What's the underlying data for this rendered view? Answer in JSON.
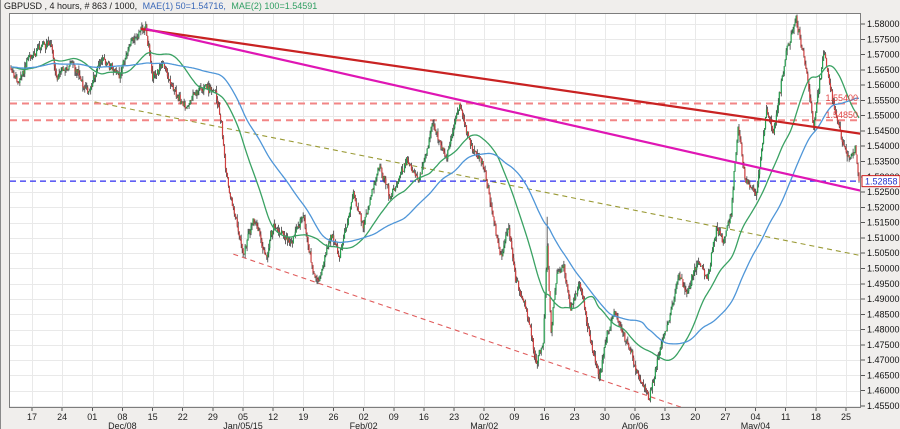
{
  "header": {
    "symbol_period": "GBPUSD , 4 hours, # 863 / 1000,",
    "mae1": "MAE(1) 50=1.54716,",
    "mae2": "MAE(2) 100=1.54591",
    "mae1_color": "#3a68b8",
    "mae2_color": "#2f9e62"
  },
  "current_price": {
    "value": "1.52858",
    "price": 1.52858,
    "line_color": "#2d2df0",
    "box_border_color": "#d02020",
    "text_color": "#2233cc"
  },
  "chart_data": {
    "type": "candlestick",
    "symbol": "GBPUSD",
    "timeframe": "4 hours",
    "bars": 863,
    "ylim": [
      1.45435,
      1.5836
    ],
    "price_axis": {
      "top": 1.58,
      "step": 0.005,
      "count": 26
    },
    "x_ticks": [
      "17",
      "24",
      "01",
      "08",
      "15",
      "22",
      "29",
      "05",
      "12",
      "19",
      "26",
      "02",
      "09",
      "16",
      "23",
      "02",
      "09",
      "16",
      "23",
      "30",
      "06",
      "13",
      "20",
      "27",
      "04",
      "11",
      "18",
      "25"
    ],
    "month_labels": [
      {
        "label": "Dec/08",
        "tick": 3
      },
      {
        "label": "Jan/05/15",
        "tick": 7
      },
      {
        "label": "Feb/02",
        "tick": 11
      },
      {
        "label": "Mar/02",
        "tick": 15
      },
      {
        "label": "Apr/06",
        "tick": 20
      },
      {
        "label": "May/04",
        "tick": 24
      }
    ],
    "levels": [
      {
        "price": 1.554,
        "label": "1.55400"
      },
      {
        "price": 1.5485,
        "label": "1.54850"
      }
    ],
    "level_line_color": "#f28585",
    "level_label_color": "#e04545",
    "moving_averages": [
      {
        "name": "ma50",
        "period": 50,
        "value": 1.54716,
        "color": "#3aa263"
      },
      {
        "name": "ma100",
        "period": 100,
        "value": 1.54591,
        "color": "#4f96d8"
      }
    ],
    "trendlines": [
      {
        "name": "old-resistance-olive",
        "layer": "back",
        "color": "#9a9a35",
        "width": 1.1,
        "dash": "5 4",
        "from": [
          85,
          1.5545
        ],
        "to": [
          875,
          1.5035
        ]
      },
      {
        "name": "support-channel-red-dashed",
        "layer": "back",
        "color": "#e05b5b",
        "width": 1.1,
        "dash": "5 4",
        "from": [
          226,
          1.5047
        ],
        "to": [
          683,
          1.4544
        ]
      },
      {
        "name": "major-resistance-red",
        "layer": "front",
        "color": "#c92222",
        "width": 2.2,
        "dash": "",
        "from": [
          132,
          1.5784
        ],
        "to": [
          866,
          1.544
        ]
      },
      {
        "name": "secondary-resistance-magenta",
        "layer": "front",
        "color": "#df16b4",
        "width": 2.2,
        "dash": "",
        "from": [
          137,
          1.5784
        ],
        "to": [
          870,
          1.525
        ]
      }
    ],
    "colors": {
      "bull": "#26a04f",
      "bear": "#d04040",
      "wick": "#3c3c3c"
    },
    "wick_spikes": [
      {
        "i": 545,
        "up": 0.0095
      }
    ],
    "waypoints": [
      [
        0,
        1.5655
      ],
      [
        7,
        1.5605
      ],
      [
        18,
        1.5685
      ],
      [
        31,
        1.5725
      ],
      [
        41,
        1.5735
      ],
      [
        46,
        1.5625
      ],
      [
        61,
        1.5675
      ],
      [
        79,
        1.5575
      ],
      [
        92,
        1.569
      ],
      [
        110,
        1.5635
      ],
      [
        122,
        1.5745
      ],
      [
        137,
        1.579
      ],
      [
        144,
        1.5625
      ],
      [
        155,
        1.567
      ],
      [
        165,
        1.5585
      ],
      [
        178,
        1.5525
      ],
      [
        186,
        1.5575
      ],
      [
        198,
        1.5595
      ],
      [
        208,
        1.5575
      ],
      [
        214,
        1.5475
      ],
      [
        218,
        1.533
      ],
      [
        222,
        1.5255
      ],
      [
        229,
        1.5155
      ],
      [
        236,
        1.5045
      ],
      [
        246,
        1.5165
      ],
      [
        252,
        1.5115
      ],
      [
        259,
        1.5035
      ],
      [
        266,
        1.5135
      ],
      [
        277,
        1.5105
      ],
      [
        285,
        1.5085
      ],
      [
        297,
        1.5175
      ],
      [
        307,
        1.4985
      ],
      [
        313,
        1.4955
      ],
      [
        325,
        1.5115
      ],
      [
        334,
        1.5035
      ],
      [
        348,
        1.5245
      ],
      [
        358,
        1.5135
      ],
      [
        374,
        1.5335
      ],
      [
        386,
        1.5235
      ],
      [
        402,
        1.535
      ],
      [
        415,
        1.5285
      ],
      [
        429,
        1.5475
      ],
      [
        442,
        1.5355
      ],
      [
        456,
        1.5535
      ],
      [
        468,
        1.5395
      ],
      [
        480,
        1.5345
      ],
      [
        498,
        1.5035
      ],
      [
        506,
        1.5135
      ],
      [
        513,
        1.4965
      ],
      [
        524,
        1.4865
      ],
      [
        534,
        1.4695
      ],
      [
        541,
        1.4755
      ],
      [
        545,
        1.5075
      ],
      [
        549,
        1.4795
      ],
      [
        555,
        1.4985
      ],
      [
        562,
        1.5005
      ],
      [
        569,
        1.487
      ],
      [
        578,
        1.4955
      ],
      [
        588,
        1.4775
      ],
      [
        598,
        1.4645
      ],
      [
        606,
        1.4785
      ],
      [
        614,
        1.4865
      ],
      [
        622,
        1.4785
      ],
      [
        630,
        1.4725
      ],
      [
        638,
        1.4645
      ],
      [
        649,
        1.4575
      ],
      [
        659,
        1.4725
      ],
      [
        669,
        1.4835
      ],
      [
        679,
        1.4985
      ],
      [
        687,
        1.4915
      ],
      [
        698,
        1.5025
      ],
      [
        708,
        1.4965
      ],
      [
        717,
        1.5135
      ],
      [
        724,
        1.5085
      ],
      [
        732,
        1.5185
      ],
      [
        739,
        1.5465
      ],
      [
        747,
        1.528
      ],
      [
        758,
        1.5245
      ],
      [
        768,
        1.552
      ],
      [
        775,
        1.5445
      ],
      [
        788,
        1.5705
      ],
      [
        798,
        1.5815
      ],
      [
        808,
        1.566
      ],
      [
        816,
        1.5465
      ],
      [
        826,
        1.5705
      ],
      [
        836,
        1.5545
      ],
      [
        844,
        1.5425
      ],
      [
        852,
        1.535
      ],
      [
        858,
        1.5395
      ],
      [
        862,
        1.52858
      ]
    ]
  }
}
